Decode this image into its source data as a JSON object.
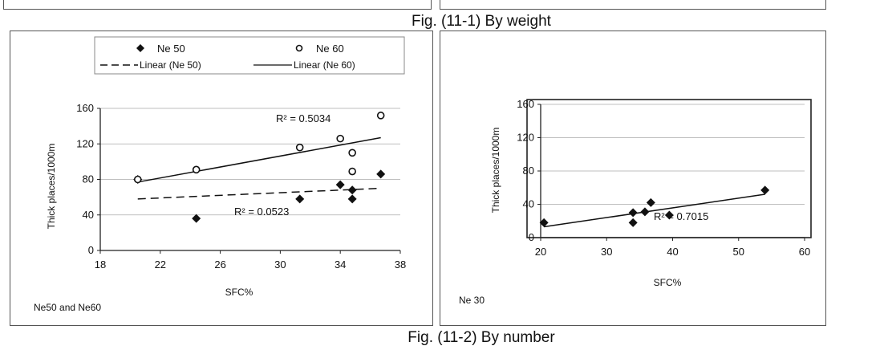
{
  "captions": {
    "top": "Fig. (11-1) By weight",
    "bottom": "Fig. (11-2) By number"
  },
  "chart_data": [
    {
      "type": "scatter",
      "xlabel": "SFC%",
      "ylabel": "Thick places/1000m",
      "xlim": [
        18,
        38
      ],
      "ylim": [
        0,
        160
      ],
      "xticks": [
        18,
        22,
        26,
        30,
        34,
        38
      ],
      "yticks": [
        0,
        40,
        80,
        120,
        160
      ],
      "grid": "horizontal",
      "legend_position": "top",
      "panel_label": "Ne50 and Ne60",
      "series": [
        {
          "name": "Ne 50",
          "marker": "filled-diamond",
          "x": [
            20.5,
            24.4,
            31.3,
            34.0,
            34.8,
            34.8,
            36.7
          ],
          "y": [
            80,
            36,
            58,
            74,
            58,
            68,
            86
          ]
        },
        {
          "name": "Ne 60",
          "marker": "open-circle",
          "x": [
            20.5,
            24.4,
            31.3,
            34.0,
            34.8,
            34.8,
            36.7
          ],
          "y": [
            80,
            91,
            116,
            126,
            110,
            89,
            152
          ]
        }
      ],
      "trendlines": [
        {
          "name": "Linear (Ne 50)",
          "style": "dashed",
          "x": [
            20.5,
            36.7
          ],
          "y": [
            58,
            70
          ],
          "r2_label": "R² = 0.0523"
        },
        {
          "name": "Linear (Ne 60)",
          "style": "solid",
          "x": [
            20.5,
            36.7
          ],
          "y": [
            77,
            127
          ],
          "r2_label": "R² = 0.5034"
        }
      ]
    },
    {
      "type": "scatter",
      "xlabel": "SFC%",
      "ylabel": "Thick places/1000m",
      "xlim": [
        20,
        60
      ],
      "ylim": [
        0,
        160
      ],
      "xticks": [
        20,
        30,
        40,
        50,
        60
      ],
      "yticks": [
        0,
        40,
        80,
        120,
        160
      ],
      "grid": "horizontal",
      "panel_label": "Ne 30",
      "series": [
        {
          "name": "Ne 30",
          "marker": "filled-diamond",
          "x": [
            20.5,
            34.0,
            34.0,
            35.8,
            36.7,
            39.5,
            54.0
          ],
          "y": [
            18,
            18,
            30,
            31,
            42,
            27,
            57
          ]
        }
      ],
      "trendlines": [
        {
          "style": "solid",
          "x": [
            20.5,
            54.0
          ],
          "y": [
            13,
            52
          ],
          "r2_label": "R² = 0.7015"
        }
      ]
    }
  ]
}
